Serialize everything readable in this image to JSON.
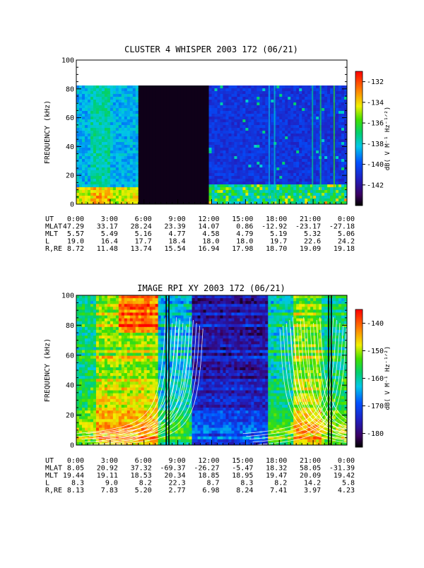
{
  "chart_data": [
    {
      "type": "heatmap",
      "title": "CLUSTER 4 WHISPER 2003 172 (06/21)",
      "ylabel": "FREQUENCY (kHz)",
      "ylim": [
        0,
        100
      ],
      "yticks": [
        "0",
        "20",
        "40",
        "60",
        "80",
        "100"
      ],
      "x": [
        "0:00",
        "3:00",
        "6:00",
        "9:00",
        "12:00",
        "15:00",
        "18:00",
        "21:00",
        "0:00"
      ],
      "colorbar": {
        "label": "dB( V M⁻¹ Hz⁻¹ᐟ²)",
        "range": [
          -144,
          -131
        ],
        "ticks": [
          "-132",
          "-134",
          "-136",
          "-138",
          "-140",
          "-142"
        ]
      },
      "data_gap": {
        "start": "5:30",
        "end": "11:40"
      },
      "ephemeris": [
        {
          "label": "UT",
          "values": [
            "0:00",
            "3:00",
            "6:00",
            "9:00",
            "12:00",
            "15:00",
            "18:00",
            "21:00",
            "0:00"
          ]
        },
        {
          "label": "MLAT",
          "values": [
            "47.29",
            "33.17",
            "28.24",
            "23.39",
            "14.07",
            "0.86",
            "-12.92",
            "-23.17",
            "-27.18"
          ]
        },
        {
          "label": "MLT",
          "values": [
            "5.57",
            "5.49",
            "5.16",
            "4.77",
            "4.58",
            "4.79",
            "5.19",
            "5.32",
            "5.06"
          ]
        },
        {
          "label": "L",
          "values": [
            "19.0",
            "16.4",
            "17.7",
            "18.4",
            "18.0",
            "18.0",
            "19.7",
            "22.6",
            "24.2"
          ]
        },
        {
          "label": "R,RE",
          "values": [
            "8.72",
            "11.48",
            "13.74",
            "15.54",
            "16.94",
            "17.98",
            "18.70",
            "19.09",
            "19.18"
          ]
        }
      ]
    },
    {
      "type": "heatmap",
      "title": "IMAGE RPI XY 2003 172 (06/21)",
      "ylabel": "FREQUENCY (kHz)",
      "ylim": [
        0,
        100
      ],
      "yticks": [
        "0",
        "20",
        "40",
        "60",
        "80",
        "100"
      ],
      "x": [
        "0:00",
        "3:00",
        "6:00",
        "9:00",
        "12:00",
        "15:00",
        "18:00",
        "21:00",
        "0:00"
      ],
      "colorbar": {
        "label": "dB( V M⁻¹ Hz⁻¹ᐟ²)",
        "range": [
          -185,
          -135
        ],
        "ticks": [
          "-140",
          "-150",
          "-160",
          "-170",
          "-180"
        ]
      },
      "ephemeris": [
        {
          "label": "UT",
          "values": [
            "0:00",
            "3:00",
            "6:00",
            "9:00",
            "12:00",
            "15:00",
            "18:00",
            "21:00",
            "0:00"
          ]
        },
        {
          "label": "MLAT",
          "values": [
            "8.05",
            "20.92",
            "37.32",
            "-69.37",
            "-26.27",
            "-5.47",
            "18.32",
            "58.05",
            "-31.39"
          ]
        },
        {
          "label": "MLT",
          "values": [
            "19.44",
            "19.11",
            "18.53",
            "20.34",
            "18.85",
            "18.95",
            "19.47",
            "20.09",
            "19.42"
          ]
        },
        {
          "label": "L",
          "values": [
            "8.3",
            "9.0",
            "8.2",
            "22.3",
            "8.7",
            "8.3",
            "8.2",
            "14.2",
            "5.8"
          ]
        },
        {
          "label": "R,RE",
          "values": [
            "8.13",
            "7.83",
            "5.20",
            "2.77",
            "6.98",
            "8.24",
            "7.41",
            "3.97",
            "4.23"
          ]
        }
      ]
    }
  ]
}
